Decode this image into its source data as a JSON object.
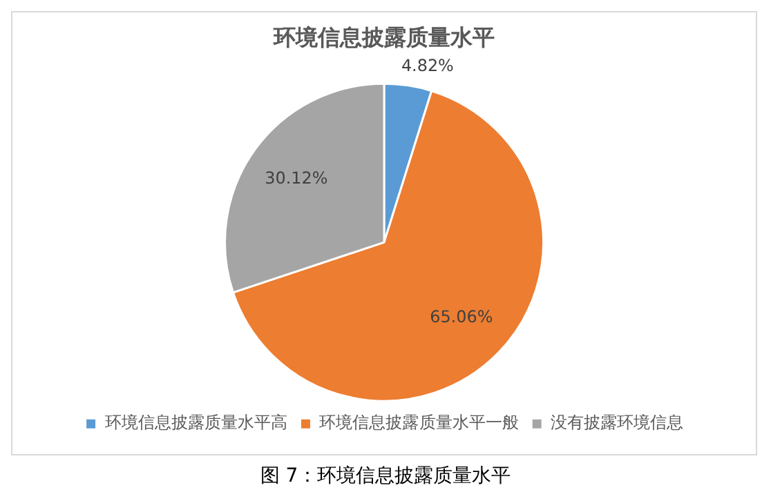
{
  "chart_data": {
    "type": "pie",
    "title": "环境信息披露质量水平",
    "categories": [
      "环境信息披露质量水平高",
      "环境信息披露质量水平一般",
      "没有披露环境信息"
    ],
    "values": [
      4.82,
      65.06,
      30.12
    ],
    "colors": [
      "#5b9bd5",
      "#ed7d31",
      "#a5a5a5"
    ],
    "value_labels": [
      "4.82%",
      "65.06%",
      "30.12%"
    ],
    "legend": "bottom",
    "annotations": [
      "图 7：环境信息披露质量水平"
    ]
  }
}
